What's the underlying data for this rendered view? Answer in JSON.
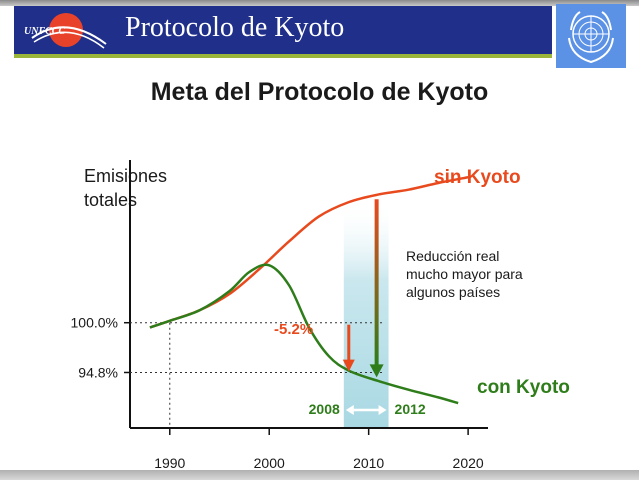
{
  "header": {
    "title": "Protocolo de Kyoto",
    "left_logo_text": "UNFCCC",
    "right_logo": "un-emblem-icon"
  },
  "slide": {
    "title": "Meta del Protocolo de Kyoto"
  },
  "chart_data": {
    "type": "line",
    "ylabel_line1": "Emisiones",
    "ylabel_line2": "totales",
    "x_ticks": [
      "1990",
      "2000",
      "2010",
      "2020"
    ],
    "xlim": [
      1986,
      2022
    ],
    "y_ticks": [
      {
        "label": "100.0%",
        "value": 100.0
      },
      {
        "label": "94.8%",
        "value": 94.8
      }
    ],
    "ylim": [
      89,
      117
    ],
    "series": [
      {
        "name": "sin Kyoto",
        "color": "#e84a1e",
        "x": [
          1988,
          1990,
          1993,
          1996,
          1999,
          2002,
          2005,
          2008,
          2011,
          2014,
          2017,
          2020
        ],
        "y": [
          99.5,
          100.2,
          101.3,
          103.0,
          105.6,
          108.5,
          111.1,
          112.6,
          113.4,
          113.9,
          114.6,
          115.2
        ]
      },
      {
        "name": "con Kyoto",
        "color": "#2e7d1a",
        "x": [
          1988,
          1990,
          1993,
          1996,
          1998,
          2000,
          2002,
          2004,
          2006,
          2008,
          2011,
          2014,
          2017,
          2019
        ],
        "y": [
          99.5,
          100.2,
          101.3,
          103.3,
          105.3,
          106.0,
          103.9,
          99.5,
          96.5,
          95.0,
          93.9,
          93.0,
          92.2,
          91.6
        ]
      }
    ],
    "commitment_period": {
      "start": "2008",
      "end": "2012",
      "x_start": 2007.5,
      "x_end": 2012
    },
    "annotations": {
      "reduction_label": "-5.2%",
      "reduction_x": 2008,
      "reduction_from": 100.0,
      "reduction_to": 95.0,
      "real_reduction_lines": [
        "Reducción real",
        "mucho mayor para",
        "algunos países"
      ],
      "real_reduction_x": 2010.8,
      "real_reduction_from": 112.9,
      "real_reduction_to": 94.5
    },
    "colors": {
      "red": "#e84a1e",
      "green": "#2e7d1a",
      "period_band": "#9fd4e0"
    }
  }
}
